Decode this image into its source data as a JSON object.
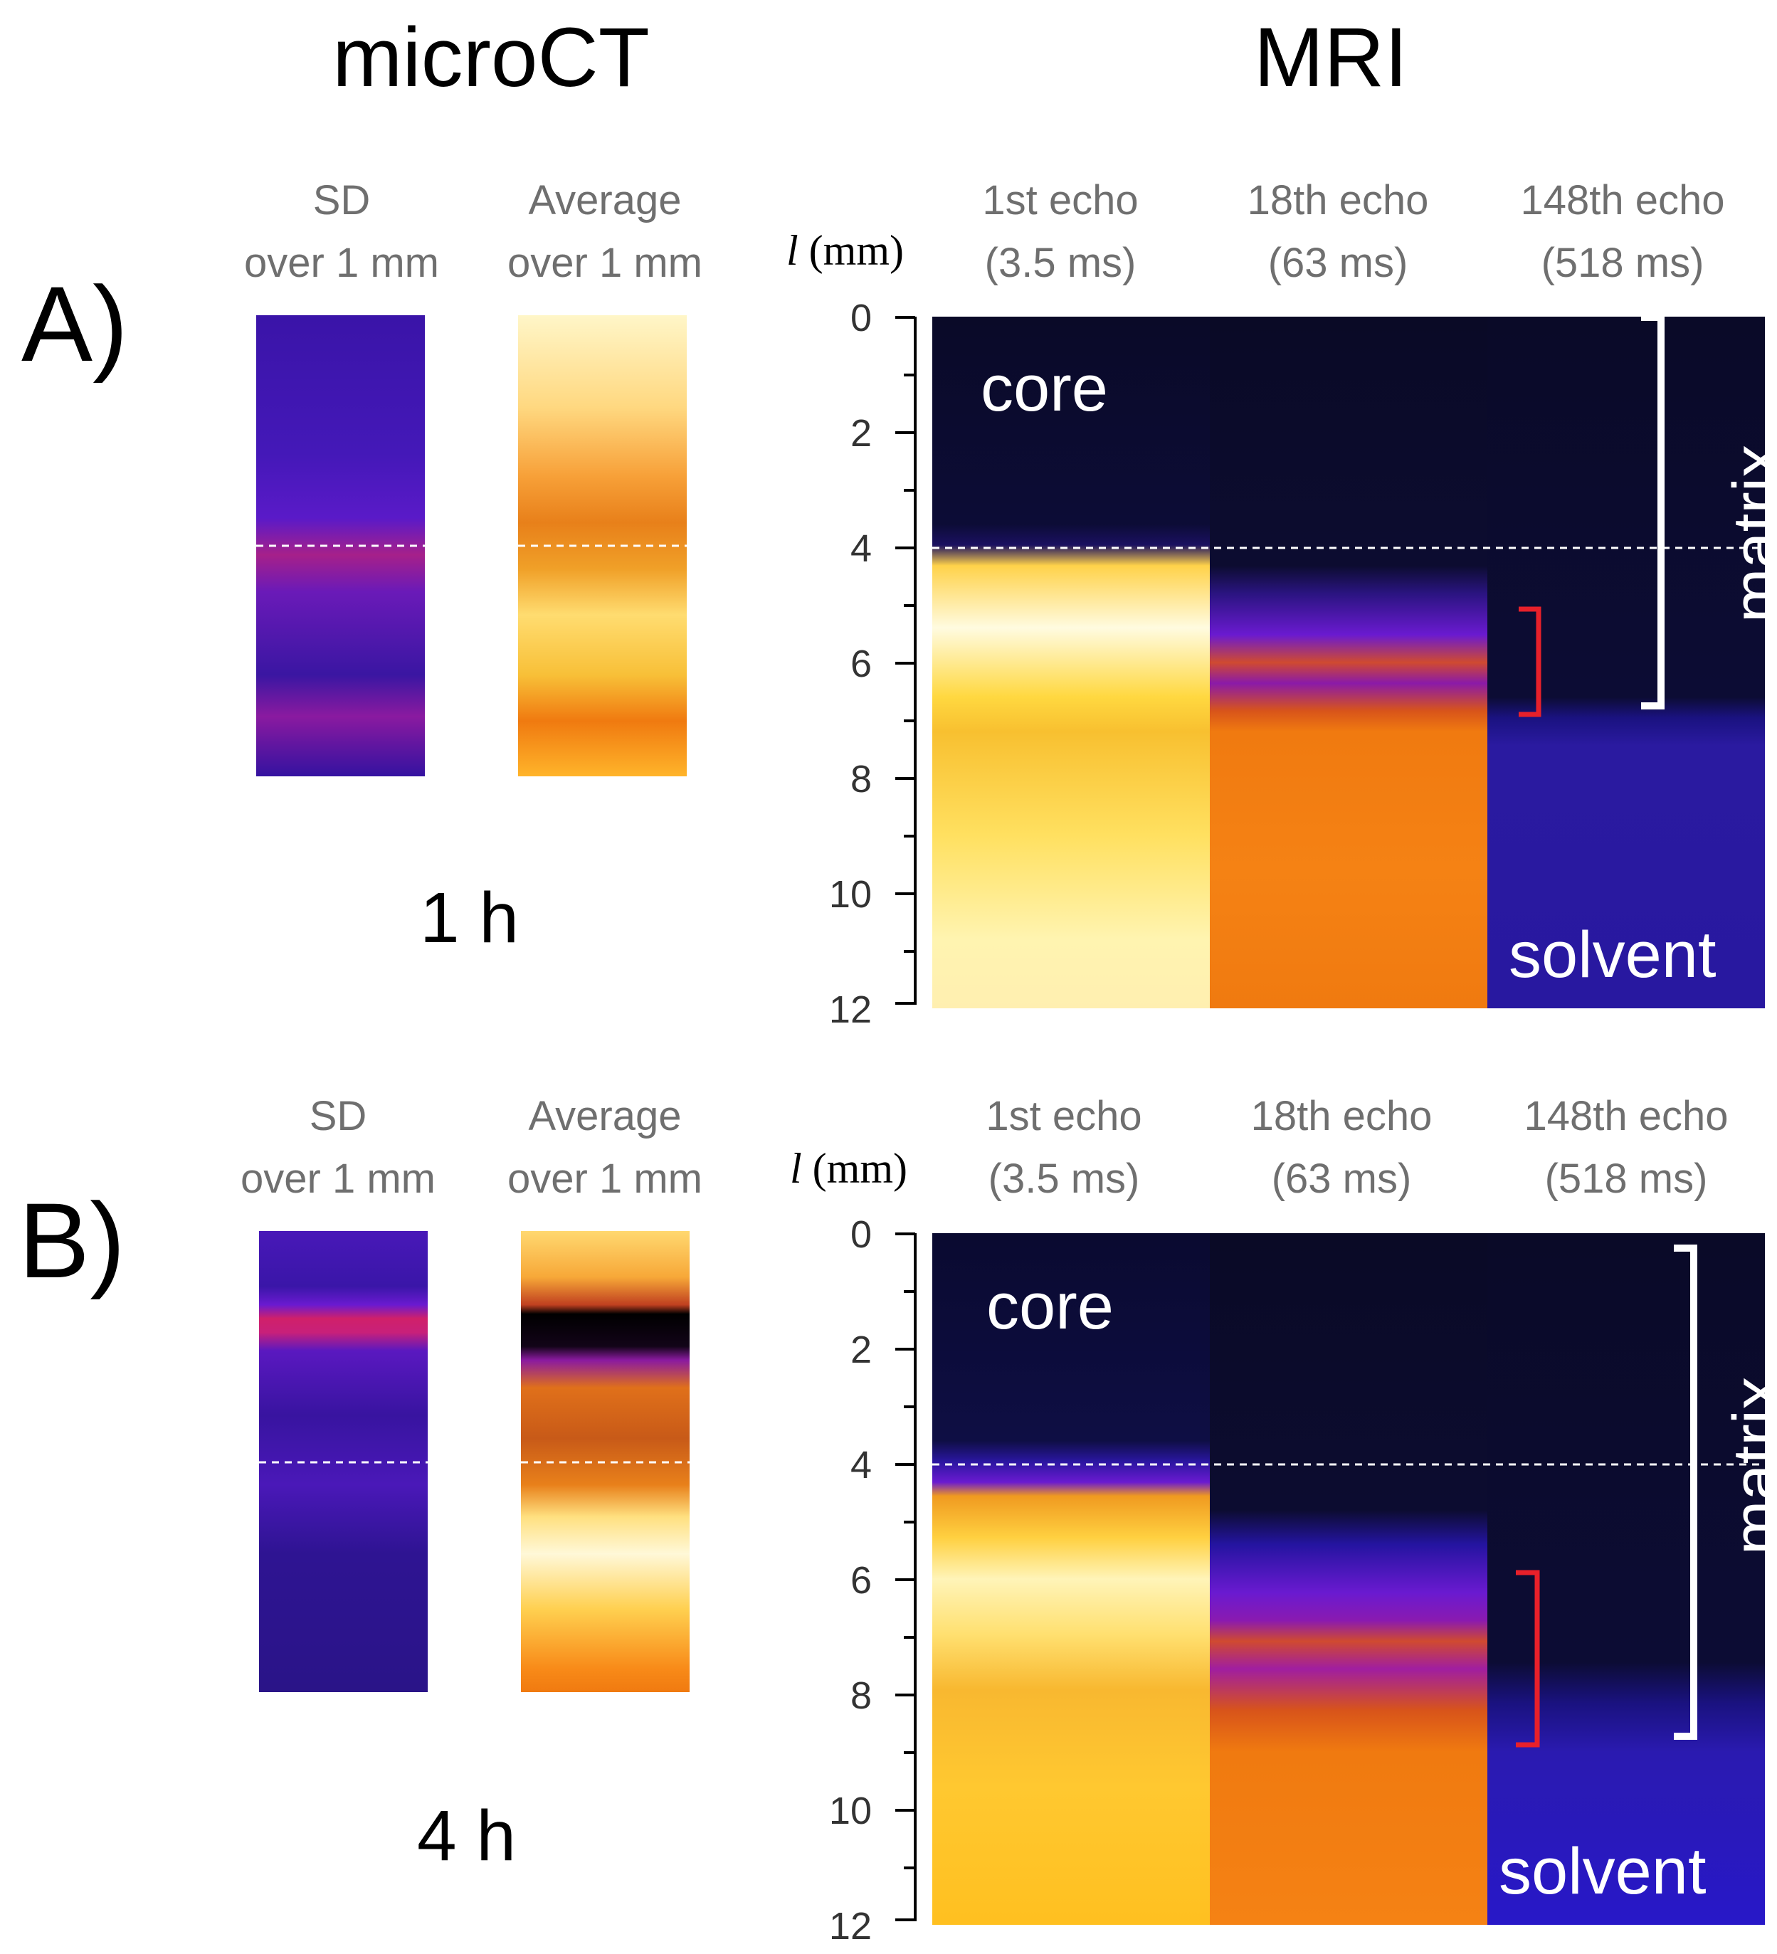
{
  "headings": {
    "microct": "microCT",
    "mri": "MRI"
  },
  "panels": [
    {
      "letter": "A)",
      "time": "1 h",
      "microct_cols": [
        {
          "line1": "SD",
          "line2": "over 1 mm"
        },
        {
          "line1": "Average",
          "line2": "over 1 mm"
        }
      ],
      "axis_label_var": "l",
      "axis_label_unit": " (mm)",
      "axis_ticks": [
        "0",
        "2",
        "4",
        "6",
        "8",
        "10",
        "12"
      ],
      "mri_cols": [
        {
          "line1": "1st echo",
          "line2": "(3.5 ms)"
        },
        {
          "line1": "18th echo",
          "line2": "(63 ms)"
        },
        {
          "line1": "148th echo",
          "line2": "(518 ms)"
        }
      ],
      "region_core": "core",
      "region_solvent": "solvent",
      "region_matrix": "matrix"
    },
    {
      "letter": "B)",
      "time": "4 h",
      "microct_cols": [
        {
          "line1": "SD",
          "line2": "over 1 mm"
        },
        {
          "line1": "Average",
          "line2": "over 1 mm"
        }
      ],
      "axis_label_var": "l",
      "axis_label_unit": " (mm)",
      "axis_ticks": [
        "0",
        "2",
        "4",
        "6",
        "8",
        "10",
        "12"
      ],
      "mri_cols": [
        {
          "line1": "1st echo",
          "line2": "(3.5 ms)"
        },
        {
          "line1": "18th echo",
          "line2": "(63 ms)"
        },
        {
          "line1": "148th echo",
          "line2": "(518 ms)"
        }
      ],
      "region_core": "core",
      "region_solvent": "solvent",
      "region_matrix": "matrix"
    }
  ],
  "colors": {
    "colormap_dark": "#0a0a28",
    "colormap_blue": "#2a1aa0",
    "colormap_purple": "#6a1ad0",
    "colormap_magenta": "#c0207a",
    "colormap_orange": "#f07a10",
    "colormap_yellow": "#ffd23a",
    "colormap_white": "#fffbe0",
    "bracket_matrix": "#ffffff",
    "bracket_red": "#e8202a",
    "guide_line": "#ffffff"
  },
  "icons": {
    "bracket": "bracket-icon",
    "dashed_line": "dashed-line-icon"
  }
}
